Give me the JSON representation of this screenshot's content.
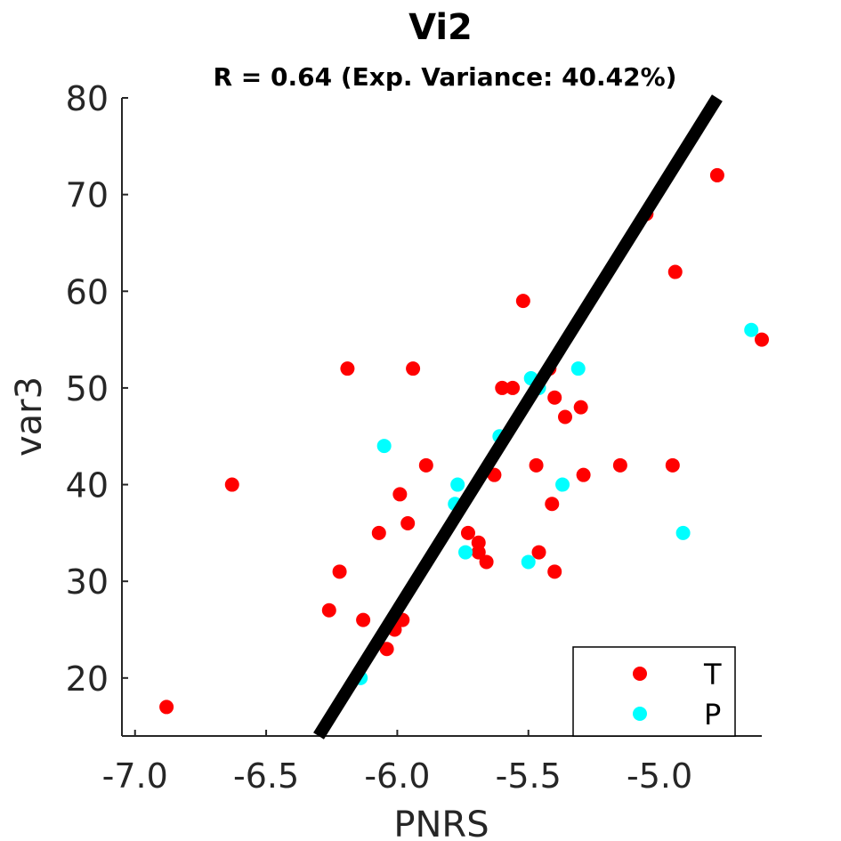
{
  "chart_data": {
    "type": "scatter",
    "title": "Vi2",
    "subtitle": "R = 0.64 (Exp. Variance: 40.42%)",
    "xlabel": "PNRS",
    "ylabel": "var3",
    "xlim": [
      -7.05,
      -4.61
    ],
    "ylim": [
      14,
      80
    ],
    "xticks": [
      -7.0,
      -6.5,
      -6.0,
      -5.5,
      -5.0
    ],
    "xtick_labels": [
      "-7.0",
      "-6.5",
      "-6.0",
      "-5.5",
      "-5.0"
    ],
    "yticks": [
      20,
      30,
      40,
      50,
      60,
      70,
      80
    ],
    "ytick_labels": [
      "20",
      "30",
      "40",
      "50",
      "60",
      "70",
      "80"
    ],
    "grid": false,
    "legend_placement": "bottom-right",
    "series": [
      {
        "name": "T",
        "color": "#ff0000",
        "points": [
          [
            -6.88,
            17
          ],
          [
            -6.63,
            40
          ],
          [
            -6.19,
            52
          ],
          [
            -6.22,
            31
          ],
          [
            -6.26,
            27
          ],
          [
            -6.13,
            26
          ],
          [
            -6.07,
            35
          ],
          [
            -6.04,
            23
          ],
          [
            -6.01,
            25
          ],
          [
            -5.98,
            26
          ],
          [
            -5.99,
            39
          ],
          [
            -5.96,
            36
          ],
          [
            -5.89,
            42
          ],
          [
            -5.94,
            52
          ],
          [
            -5.73,
            35
          ],
          [
            -5.69,
            34
          ],
          [
            -5.69,
            33
          ],
          [
            -5.66,
            32
          ],
          [
            -5.63,
            41
          ],
          [
            -5.6,
            50
          ],
          [
            -5.56,
            50
          ],
          [
            -5.52,
            59
          ],
          [
            -5.47,
            42
          ],
          [
            -5.46,
            33
          ],
          [
            -5.42,
            52
          ],
          [
            -5.4,
            49
          ],
          [
            -5.36,
            47
          ],
          [
            -5.41,
            38
          ],
          [
            -5.4,
            31
          ],
          [
            -5.3,
            48
          ],
          [
            -5.29,
            41
          ],
          [
            -5.15,
            42
          ],
          [
            -5.05,
            68
          ],
          [
            -4.95,
            42
          ],
          [
            -4.94,
            62
          ],
          [
            -4.78,
            72
          ],
          [
            -4.61,
            55
          ]
        ]
      },
      {
        "name": "P",
        "color": "#00ffff",
        "points": [
          [
            -6.14,
            20
          ],
          [
            -6.05,
            44
          ],
          [
            -5.78,
            38
          ],
          [
            -5.77,
            40
          ],
          [
            -5.74,
            33
          ],
          [
            -5.61,
            45
          ],
          [
            -5.5,
            32
          ],
          [
            -5.49,
            51
          ],
          [
            -5.46,
            50
          ],
          [
            -5.37,
            40
          ],
          [
            -5.31,
            52
          ],
          [
            -4.91,
            35
          ],
          [
            -4.65,
            56
          ]
        ]
      }
    ],
    "fit_line": {
      "color": "#000000",
      "x": [
        -6.3,
        -4.78
      ],
      "y": [
        14,
        80
      ]
    }
  }
}
